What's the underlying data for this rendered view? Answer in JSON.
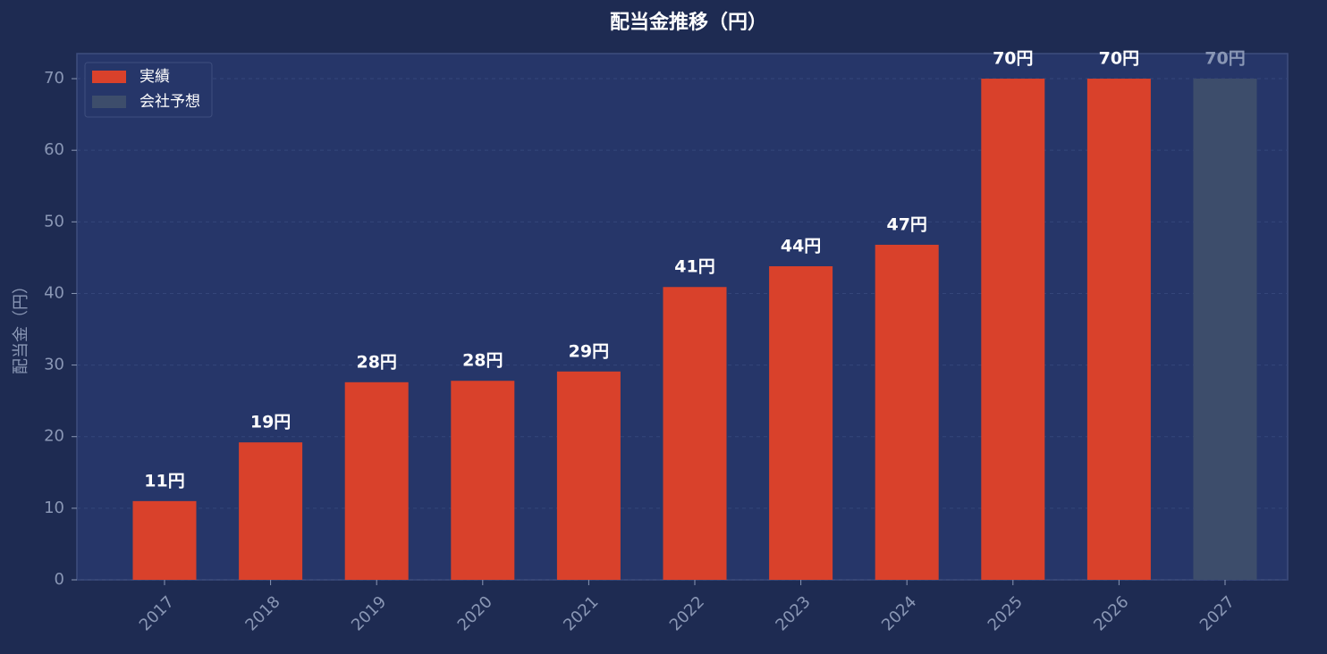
{
  "chart_data": {
    "type": "bar",
    "title": "配当金推移（円）",
    "y_label": "配当金（円）",
    "categories": [
      "2017",
      "2018",
      "2019",
      "2020",
      "2021",
      "2022",
      "2023",
      "2024",
      "2025",
      "2026",
      "2027"
    ],
    "series": [
      {
        "name": "実績",
        "color": "#d9412b",
        "values": [
          11,
          19.2,
          27.6,
          27.8,
          29.1,
          40.9,
          43.8,
          46.8,
          70,
          70,
          null
        ],
        "value_labels": [
          "11円",
          "19円",
          "28円",
          "28円",
          "29円",
          "41円",
          "44円",
          "47円",
          "70円",
          "70円",
          null
        ]
      },
      {
        "name": "会社予想",
        "color": "#3d4d6b",
        "values": [
          null,
          null,
          null,
          null,
          null,
          null,
          null,
          null,
          null,
          null,
          70
        ],
        "value_labels": [
          null,
          null,
          null,
          null,
          null,
          null,
          null,
          null,
          null,
          null,
          "70円"
        ]
      }
    ],
    "ylim": [
      0,
      73.5
    ],
    "yticks": [
      0,
      10,
      20,
      30,
      40,
      50,
      60,
      70
    ],
    "grid": true,
    "legend": "upper left"
  }
}
